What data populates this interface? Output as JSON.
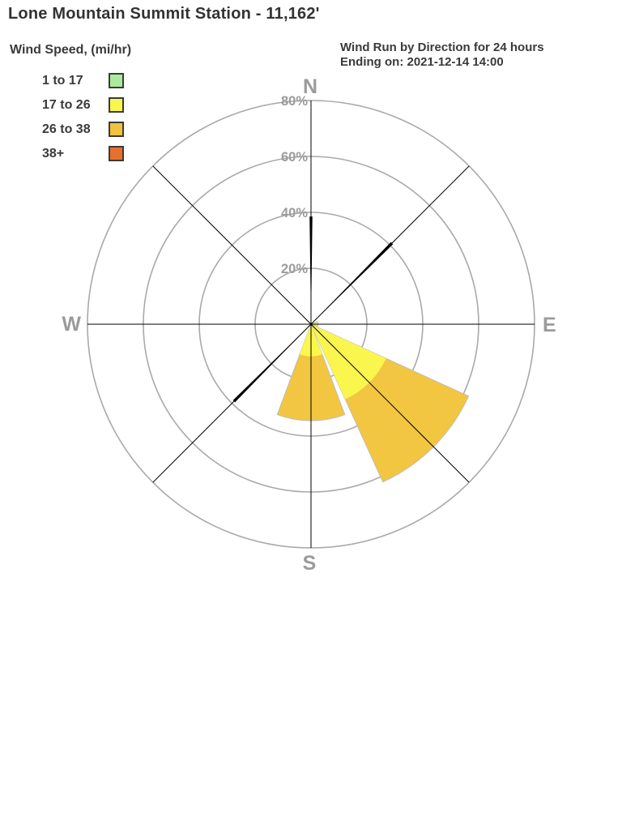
{
  "header": {
    "title": "Lone Mountain Summit Station - 11,162'",
    "legend_title": "Wind Speed, (mi/hr)",
    "subtitle_line1": "Wind Run by Direction for 24 hours",
    "subtitle_line2": "Ending on: 2021-12-14 14:00"
  },
  "legend": {
    "items": [
      {
        "label": "1 to 17",
        "color": "#aaeb9b"
      },
      {
        "label": "17 to 26",
        "color": "#f9f74e"
      },
      {
        "label": "26 to 38",
        "color": "#f0c23e"
      },
      {
        "label": "38+",
        "color": "#e7702d"
      }
    ]
  },
  "chart_data": {
    "type": "wind_rose",
    "title": "Wind Run by Direction for 24 hours",
    "ending_on": "2021-12-14 14:00",
    "units": "percent of 24-hour wind run",
    "rlim": [
      0,
      80
    ],
    "ring_ticks_pct": [
      20,
      40,
      60,
      80
    ],
    "ring_tick_labels": [
      "20%",
      "40%",
      "60%",
      "80%"
    ],
    "sector_width_deg": 45,
    "compass_labels": {
      "n": "N",
      "e": "E",
      "s": "S",
      "w": "W"
    },
    "speed_bins": [
      {
        "label": "1 to 17",
        "color": "#aaeb9b"
      },
      {
        "label": "17 to 26",
        "color": "#f9f74e"
      },
      {
        "label": "26 to 38",
        "color": "#f0c23e"
      },
      {
        "label": "38+",
        "color": "#e7702d"
      }
    ],
    "sectors": [
      {
        "direction": "N",
        "angle_deg": 0,
        "style": "spike",
        "total_pct": 38.5
      },
      {
        "direction": "NE",
        "angle_deg": 45,
        "style": "spike",
        "total_pct": 41
      },
      {
        "direction": "E",
        "angle_deg": 90,
        "style": "wedge",
        "total_pct": 2.5,
        "segments": [
          {
            "bin": "17 to 26",
            "color": "#fbf64e",
            "from_pct": 0,
            "to_pct": 2.5
          }
        ]
      },
      {
        "direction": "SE",
        "angle_deg": 135,
        "style": "wedge",
        "total_pct": 62,
        "segments": [
          {
            "bin": "17 to 26",
            "color": "#fbf64e",
            "from_pct": 0,
            "to_pct": 29.5
          },
          {
            "bin": "26 to 38",
            "color": "#f2c640",
            "from_pct": 29.5,
            "to_pct": 62
          }
        ]
      },
      {
        "direction": "S",
        "angle_deg": 180,
        "style": "wedge",
        "total_pct": 34.5,
        "segments": [
          {
            "bin": "17 to 26",
            "color": "#fbf64e",
            "from_pct": 0,
            "to_pct": 11.5
          },
          {
            "bin": "26 to 38",
            "color": "#f2c640",
            "from_pct": 11.5,
            "to_pct": 34.5
          }
        ]
      },
      {
        "direction": "SW",
        "angle_deg": 225,
        "style": "spike",
        "total_pct": 39
      }
    ],
    "colors": {
      "grid_ring": "#a9a9a9",
      "axis_line": "#000000",
      "spike": "#000000",
      "wedge_outline": "#bdbdbd",
      "gray_label": "#9b9b9b"
    },
    "legend_position": "top-left",
    "grid": "on"
  }
}
